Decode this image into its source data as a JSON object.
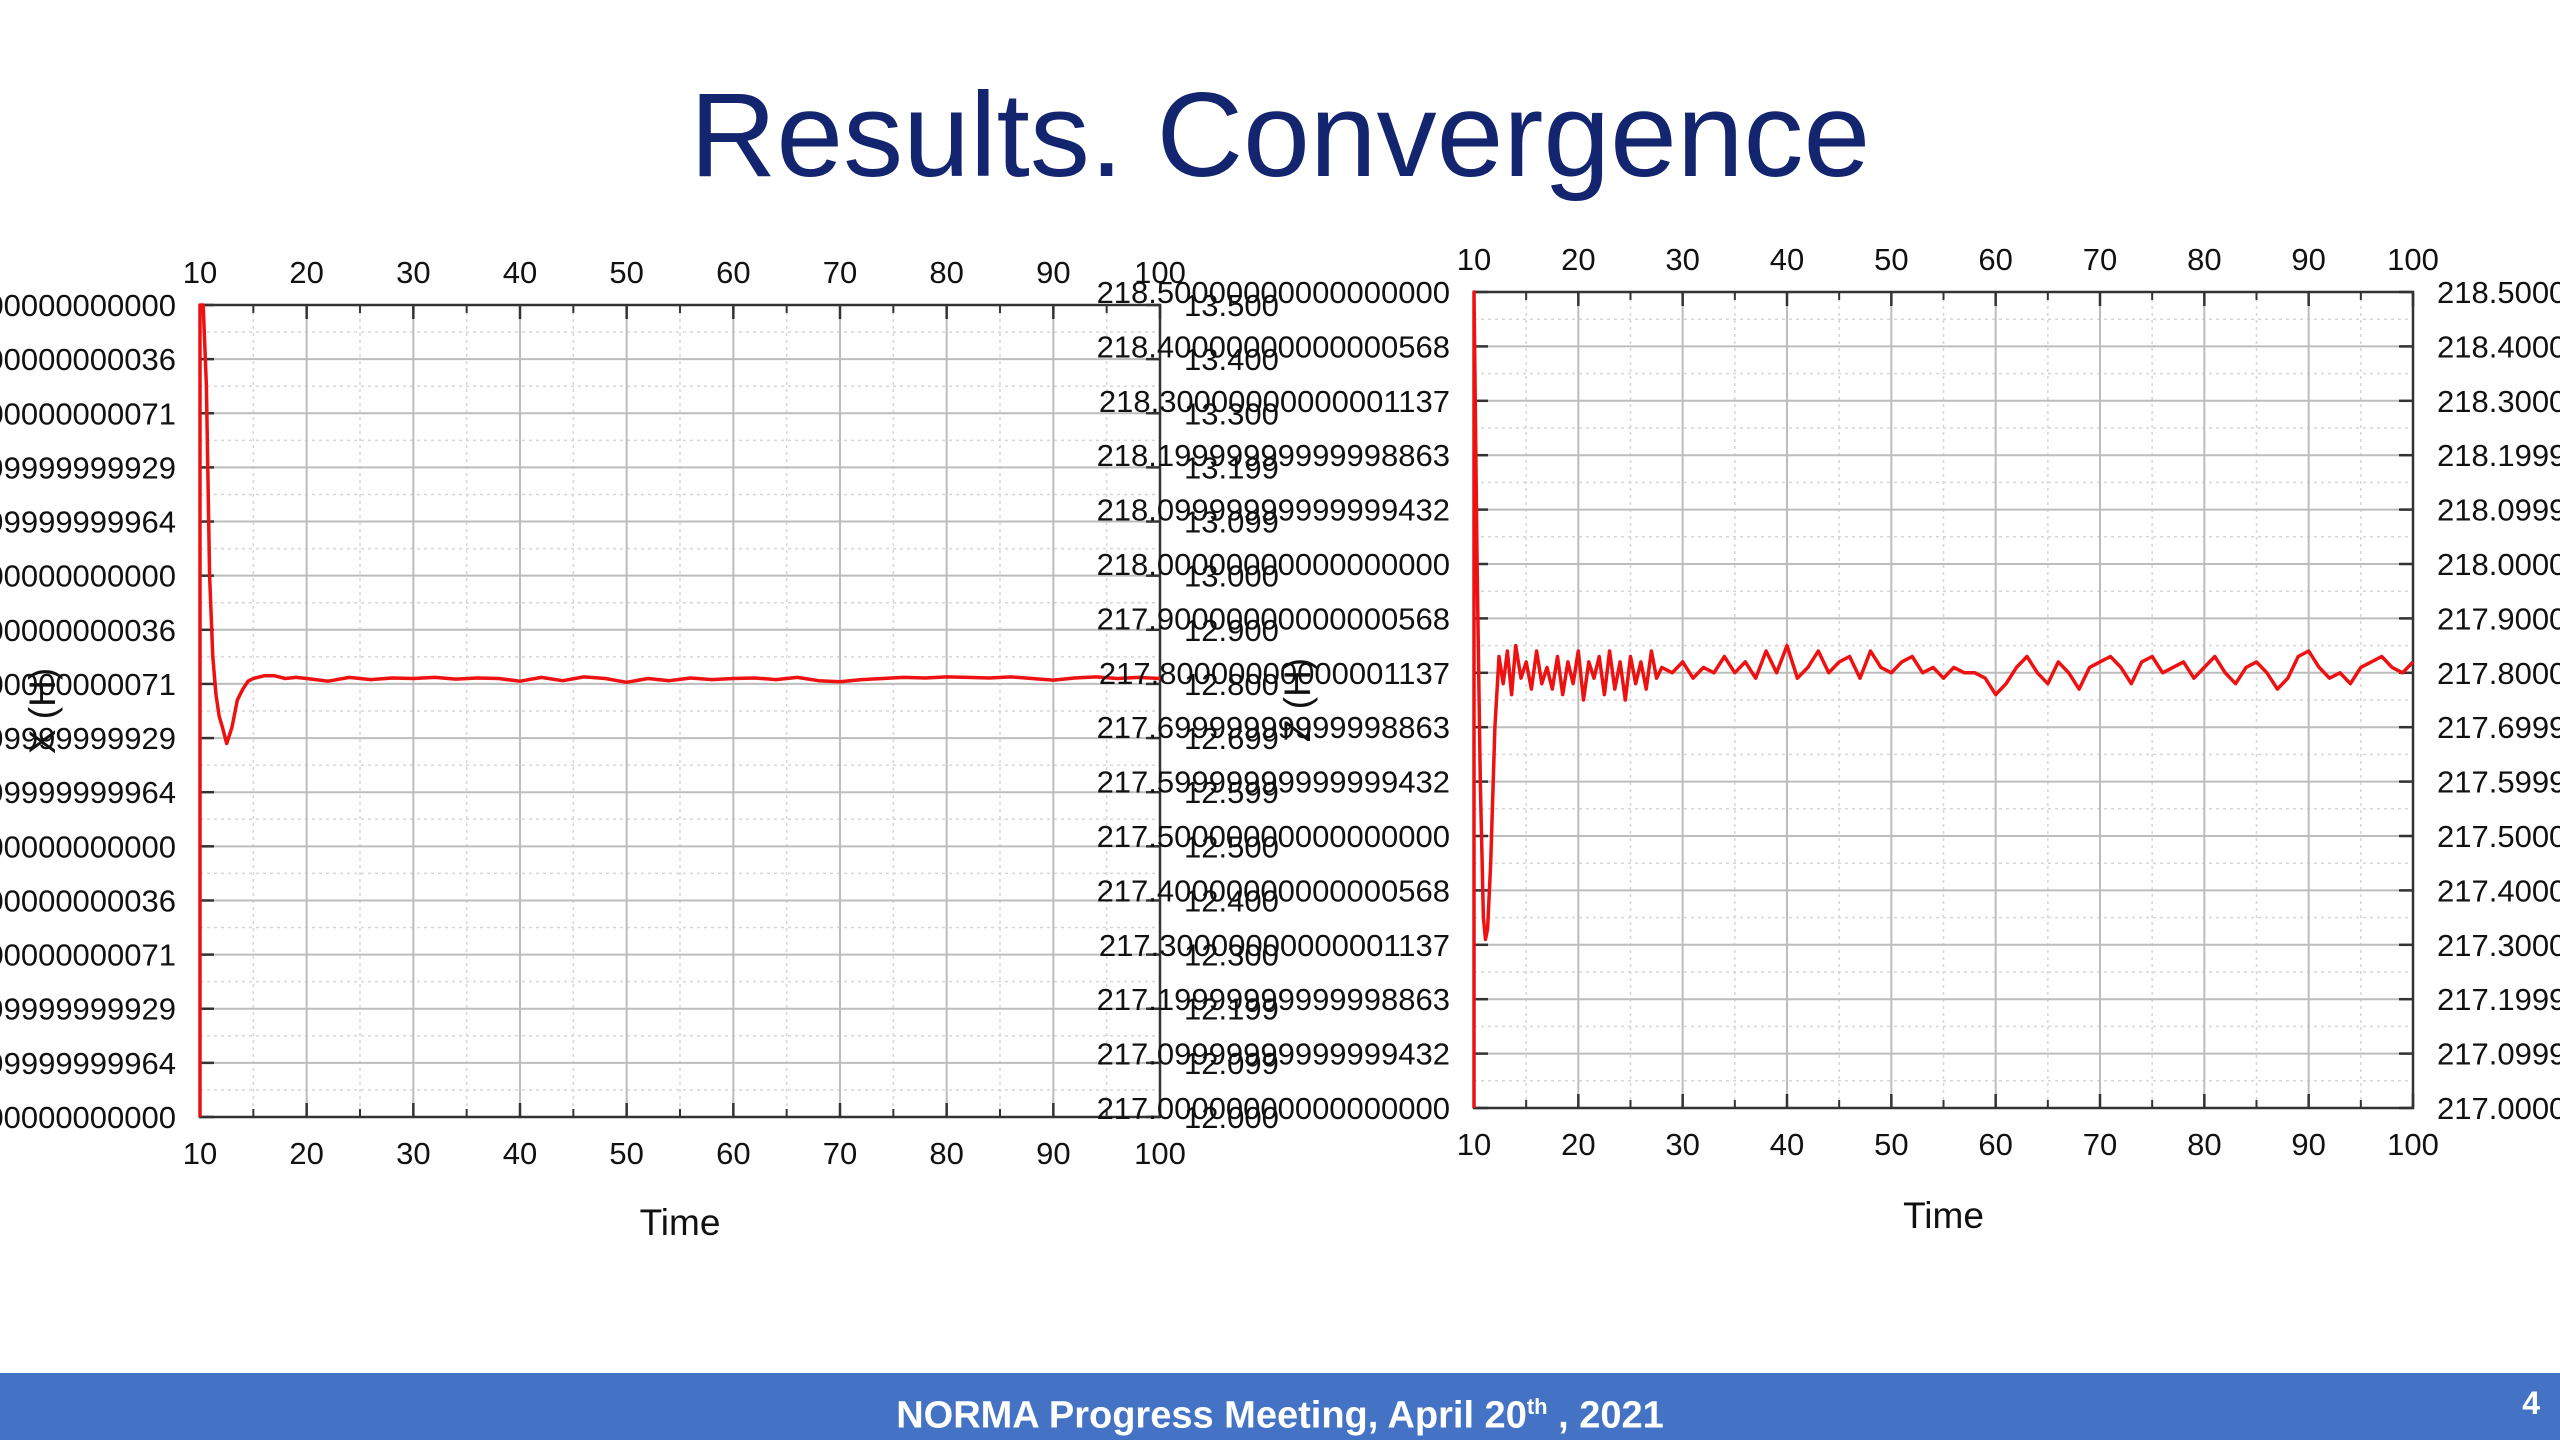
{
  "slide": {
    "title": "Results. Convergence",
    "footer": {
      "text_before": "NORMA Progress Meeting, April 20",
      "superscript": "th",
      "text_after": " , 2021"
    },
    "page_number": "4"
  },
  "chart_data": [
    {
      "type": "line",
      "title": "",
      "xlabel": "Time",
      "ylabel": "X (H)",
      "xlim": [
        10,
        100
      ],
      "ylim": [
        12.0,
        13.5
      ],
      "x_ticks": [
        10,
        20,
        30,
        40,
        50,
        60,
        70,
        80,
        90,
        100
      ],
      "y_ticks": [
        12.0,
        12.1,
        12.2,
        12.3,
        12.4,
        12.5,
        12.6,
        12.7,
        12.8,
        12.9,
        13.0,
        13.1,
        13.2,
        13.3,
        13.4,
        13.5
      ],
      "grid": true,
      "mirror_axes": true,
      "series": [
        {
          "color": "#ee1111",
          "x": [
            10,
            10,
            10.3,
            10.6,
            10.9,
            11.2,
            11.5,
            11.8,
            12.1,
            12.5,
            13,
            13.5,
            14,
            14.5,
            15,
            16,
            17,
            18,
            19,
            20,
            22,
            24,
            26,
            28,
            30,
            32,
            34,
            36,
            38,
            40,
            42,
            44,
            46,
            48,
            50,
            52,
            54,
            56,
            58,
            60,
            62,
            64,
            66,
            68,
            70,
            72,
            74,
            76,
            78,
            80,
            82,
            84,
            86,
            88,
            90,
            92,
            94,
            96,
            98,
            100
          ],
          "y": [
            12.0,
            13.5,
            13.5,
            13.35,
            13.0,
            12.85,
            12.78,
            12.74,
            12.72,
            12.69,
            12.72,
            12.77,
            12.79,
            12.805,
            12.81,
            12.815,
            12.815,
            12.81,
            12.812,
            12.81,
            12.805,
            12.812,
            12.808,
            12.811,
            12.81,
            12.812,
            12.809,
            12.811,
            12.81,
            12.805,
            12.812,
            12.806,
            12.813,
            12.81,
            12.803,
            12.81,
            12.806,
            12.811,
            12.808,
            12.81,
            12.811,
            12.808,
            12.812,
            12.806,
            12.804,
            12.808,
            12.81,
            12.812,
            12.811,
            12.813,
            12.812,
            12.811,
            12.813,
            12.81,
            12.807,
            12.811,
            12.813,
            12.81,
            12.812,
            12.81
          ]
        }
      ]
    },
    {
      "type": "line",
      "title": "",
      "xlabel": "Time",
      "ylabel": "Z (H)",
      "xlim": [
        10,
        100
      ],
      "ylim": [
        217.0,
        218.5
      ],
      "x_ticks": [
        10,
        20,
        30,
        40,
        50,
        60,
        70,
        80,
        90,
        100
      ],
      "y_ticks": [
        217.0,
        217.1,
        217.2,
        217.3,
        217.4,
        217.5,
        217.6,
        217.7,
        217.8,
        217.9,
        218.0,
        218.1,
        218.2,
        218.3,
        218.4,
        218.5
      ],
      "grid": true,
      "mirror_axes": true,
      "series": [
        {
          "color": "#ee1111",
          "x": [
            10,
            10,
            10.3,
            10.6,
            10.9,
            11.1,
            11.3,
            11.6,
            12,
            12.4,
            12.8,
            13.2,
            13.6,
            14,
            14.5,
            15,
            15.5,
            16,
            16.5,
            17,
            17.5,
            18,
            18.5,
            19,
            19.5,
            20,
            20.5,
            21,
            21.5,
            22,
            22.5,
            23,
            23.5,
            24,
            24.5,
            25,
            25.5,
            26,
            26.5,
            27,
            27.5,
            28,
            29,
            30,
            31,
            32,
            33,
            34,
            35,
            36,
            37,
            38,
            39,
            40,
            41,
            42,
            43,
            44,
            45,
            46,
            47,
            48,
            49,
            50,
            51,
            52,
            53,
            54,
            55,
            56,
            57,
            58,
            59,
            60,
            61,
            62,
            63,
            64,
            65,
            66,
            67,
            68,
            69,
            70,
            71,
            72,
            73,
            74,
            75,
            76,
            77,
            78,
            79,
            80,
            81,
            82,
            83,
            84,
            85,
            86,
            87,
            88,
            89,
            90,
            91,
            92,
            93,
            94,
            95,
            96,
            97,
            98,
            99,
            100
          ],
          "y": [
            217.0,
            218.5,
            218.0,
            217.6,
            217.35,
            217.31,
            217.33,
            217.45,
            217.7,
            217.83,
            217.78,
            217.84,
            217.76,
            217.85,
            217.79,
            217.82,
            217.77,
            217.84,
            217.78,
            217.81,
            217.77,
            217.83,
            217.76,
            217.82,
            217.78,
            217.84,
            217.75,
            217.82,
            217.79,
            217.83,
            217.76,
            217.84,
            217.77,
            217.82,
            217.75,
            217.83,
            217.78,
            217.82,
            217.77,
            217.84,
            217.79,
            217.81,
            217.8,
            217.82,
            217.79,
            217.81,
            217.8,
            217.83,
            217.8,
            217.82,
            217.79,
            217.84,
            217.8,
            217.85,
            217.79,
            217.81,
            217.84,
            217.8,
            217.82,
            217.83,
            217.79,
            217.84,
            217.81,
            217.8,
            217.82,
            217.83,
            217.8,
            217.81,
            217.79,
            217.81,
            217.8,
            217.8,
            217.79,
            217.76,
            217.78,
            217.81,
            217.83,
            217.8,
            217.78,
            217.82,
            217.8,
            217.77,
            217.81,
            217.82,
            217.83,
            217.81,
            217.78,
            217.82,
            217.83,
            217.8,
            217.81,
            217.82,
            217.79,
            217.81,
            217.83,
            217.8,
            217.78,
            217.81,
            217.82,
            217.8,
            217.77,
            217.79,
            217.83,
            217.84,
            217.81,
            217.79,
            217.8,
            217.78,
            217.81,
            217.82,
            217.83,
            217.81,
            217.8,
            217.82
          ]
        }
      ]
    }
  ]
}
